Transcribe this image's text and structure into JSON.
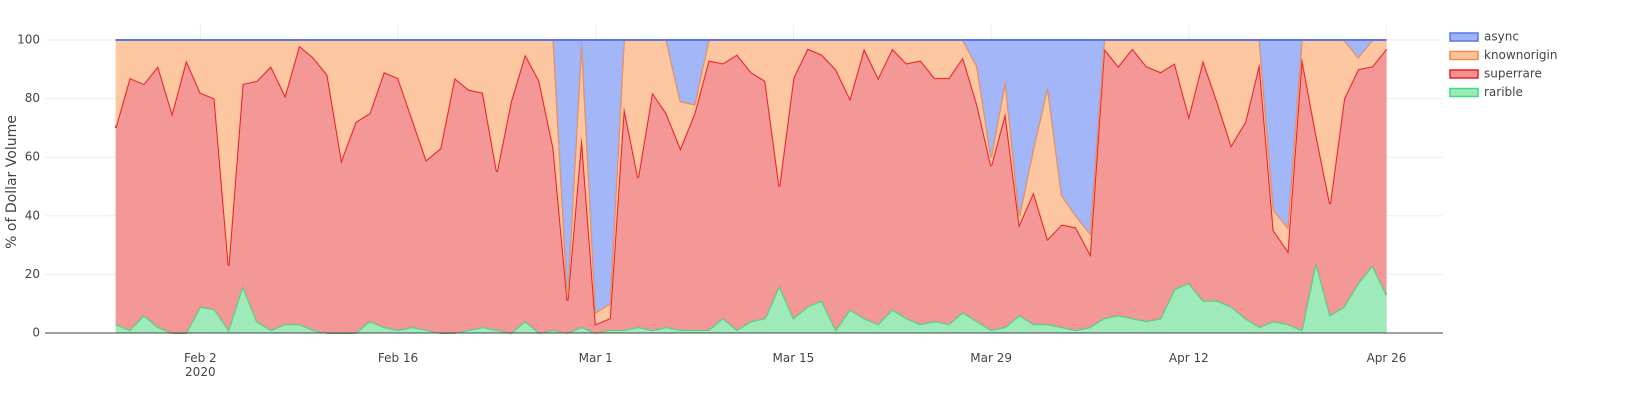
{
  "chart_data": {
    "type": "stacked_area",
    "y_label": "% of Dollar Volume",
    "x": [
      "2020-01-27",
      "2020-01-28",
      "2020-01-29",
      "2020-01-30",
      "2020-01-31",
      "2020-02-01",
      "2020-02-02",
      "2020-02-03",
      "2020-02-04",
      "2020-02-05",
      "2020-02-06",
      "2020-02-07",
      "2020-02-08",
      "2020-02-09",
      "2020-02-10",
      "2020-02-11",
      "2020-02-12",
      "2020-02-13",
      "2020-02-14",
      "2020-02-15",
      "2020-02-16",
      "2020-02-17",
      "2020-02-18",
      "2020-02-19",
      "2020-02-20",
      "2020-02-21",
      "2020-02-22",
      "2020-02-23",
      "2020-02-24",
      "2020-02-25",
      "2020-02-26",
      "2020-02-27",
      "2020-02-28",
      "2020-02-29",
      "2020-03-01",
      "2020-03-02",
      "2020-03-03",
      "2020-03-04",
      "2020-03-05",
      "2020-03-06",
      "2020-03-07",
      "2020-03-08",
      "2020-03-09",
      "2020-03-10",
      "2020-03-11",
      "2020-03-12",
      "2020-03-13",
      "2020-03-14",
      "2020-03-15",
      "2020-03-16",
      "2020-03-17",
      "2020-03-18",
      "2020-03-19",
      "2020-03-20",
      "2020-03-21",
      "2020-03-22",
      "2020-03-23",
      "2020-03-24",
      "2020-03-25",
      "2020-03-26",
      "2020-03-27",
      "2020-03-28",
      "2020-03-29",
      "2020-03-30",
      "2020-03-31",
      "2020-04-01",
      "2020-04-02",
      "2020-04-03",
      "2020-04-04",
      "2020-04-05",
      "2020-04-06",
      "2020-04-07",
      "2020-04-08",
      "2020-04-09",
      "2020-04-10",
      "2020-04-11",
      "2020-04-12",
      "2020-04-13",
      "2020-04-14",
      "2020-04-15",
      "2020-04-16",
      "2020-04-17",
      "2020-04-18",
      "2020-04-19",
      "2020-04-20",
      "2020-04-21",
      "2020-04-22",
      "2020-04-23",
      "2020-04-24",
      "2020-04-25",
      "2020-04-26"
    ],
    "series": [
      {
        "name": "rarible",
        "color": "#3ddc84",
        "fill": "#9ae9b6",
        "values": [
          3,
          1,
          6,
          2,
          0,
          0,
          9,
          8,
          1,
          16,
          4,
          1,
          3,
          3,
          1,
          0,
          0,
          0,
          4,
          2,
          1,
          2,
          1,
          0,
          0,
          1,
          2,
          1,
          0,
          4,
          0,
          1,
          0,
          2,
          0,
          1,
          1,
          2,
          1,
          2,
          1,
          1,
          1,
          5,
          1,
          4,
          5,
          16,
          5,
          9,
          11,
          1,
          8,
          5,
          3,
          8,
          5,
          3,
          4,
          3,
          7,
          4,
          1,
          2,
          6,
          3,
          3,
          2,
          1,
          2,
          5,
          6,
          5,
          4,
          5,
          15,
          17,
          11,
          11,
          9,
          5,
          2,
          4,
          3,
          1,
          24,
          6,
          9,
          17,
          23,
          13
        ]
      },
      {
        "name": "superrare",
        "color": "#e8202a",
        "fill": "#f39191",
        "values": [
          67,
          86,
          79,
          89,
          75,
          93,
          73,
          72,
          22,
          69,
          82,
          90,
          78,
          95,
          93,
          88,
          59,
          72,
          71,
          87,
          86,
          71,
          58,
          63,
          87,
          82,
          80,
          54,
          79,
          91,
          86,
          62,
          11,
          65,
          3,
          4,
          76,
          51,
          81,
          73,
          62,
          74,
          92,
          87,
          94,
          85,
          81,
          34,
          82,
          88,
          84,
          89,
          72,
          92,
          84,
          89,
          87,
          90,
          83,
          84,
          87,
          74,
          56,
          73,
          31,
          45,
          29,
          35,
          35,
          25,
          92,
          85,
          92,
          87,
          84,
          77,
          57,
          82,
          68,
          55,
          67,
          90,
          31,
          25,
          93,
          44,
          38,
          71,
          73,
          68,
          84
        ]
      },
      {
        "name": "knownorigin",
        "color": "#f58a4a",
        "fill": "#fdc49c",
        "values": [
          30,
          13,
          15,
          9,
          25,
          7,
          18,
          20,
          77,
          15,
          14,
          9,
          19,
          2,
          6,
          12,
          41,
          28,
          25,
          11,
          13,
          27,
          41,
          37,
          13,
          17,
          18,
          45,
          21,
          5,
          14,
          37,
          2,
          33,
          4,
          5,
          23,
          47,
          18,
          25,
          16,
          3,
          7,
          8,
          5,
          11,
          14,
          50,
          13,
          3,
          5,
          10,
          20,
          3,
          13,
          3,
          8,
          7,
          13,
          13,
          6,
          13,
          3,
          11,
          3,
          15,
          52,
          10,
          4,
          7,
          3,
          9,
          3,
          9,
          11,
          8,
          26,
          7,
          21,
          36,
          28,
          8,
          7,
          8,
          6,
          32,
          56,
          20,
          4,
          9,
          3
        ]
      },
      {
        "name": "async",
        "color": "#5a78e0",
        "fill": "#9db2f8",
        "values": [
          0,
          0,
          0,
          0,
          0,
          0,
          0,
          0,
          0,
          0,
          0,
          0,
          0,
          0,
          0,
          0,
          0,
          0,
          0,
          0,
          0,
          0,
          0,
          0,
          0,
          0,
          0,
          0,
          0,
          0,
          0,
          0,
          87,
          0,
          93,
          90,
          0,
          0,
          0,
          0,
          21,
          22,
          0,
          0,
          0,
          0,
          0,
          0,
          0,
          0,
          0,
          0,
          0,
          0,
          0,
          0,
          0,
          0,
          0,
          0,
          0,
          9,
          40,
          14,
          60,
          37,
          16,
          53,
          60,
          66,
          0,
          0,
          0,
          0,
          0,
          0,
          0,
          0,
          0,
          0,
          0,
          0,
          58,
          64,
          0,
          0,
          0,
          0,
          6,
          0,
          0
        ]
      }
    ],
    "xlim": [
      "2020-01-22",
      "2020-04-30"
    ],
    "xticks": [
      {
        "value": "2020-02-02",
        "label": "Feb 2\n2020"
      },
      {
        "value": "2020-02-16",
        "label": "Feb 16"
      },
      {
        "value": "2020-03-01",
        "label": "Mar 1"
      },
      {
        "value": "2020-03-15",
        "label": "Mar 15"
      },
      {
        "value": "2020-03-29",
        "label": "Mar 29"
      },
      {
        "value": "2020-04-12",
        "label": "Apr 12"
      },
      {
        "value": "2020-04-26",
        "label": "Apr 26"
      }
    ],
    "ylim": [
      0,
      105
    ],
    "yticks": [
      0,
      20,
      40,
      60,
      80,
      100
    ],
    "grid": true,
    "legend": "right"
  }
}
